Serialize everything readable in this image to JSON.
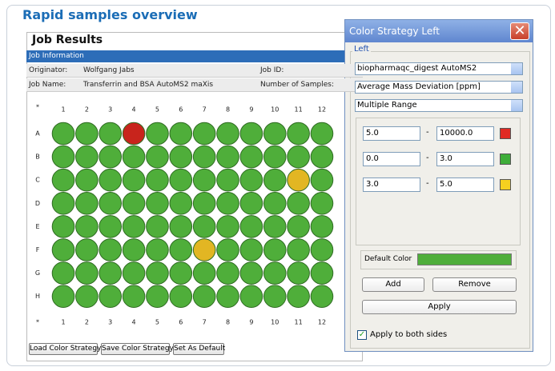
{
  "header": {
    "title": "Rapid samples overview"
  },
  "job_panel": {
    "title": "Job Results",
    "section": "Job Information",
    "rows": [
      [
        "Originator:",
        "Wolfgang Jabs",
        "Job ID:"
      ],
      [
        "Job Name:",
        "Transferrin and BSA AutoMS2 maXis",
        "Number of Samples:"
      ]
    ],
    "plate": {
      "corner": "*",
      "columns": [
        1,
        2,
        3,
        4,
        5,
        6,
        7,
        8,
        9,
        10,
        11,
        12
      ],
      "rows": [
        "A",
        "B",
        "C",
        "D",
        "E",
        "F",
        "G",
        "H"
      ],
      "default_color": "#4fae3a",
      "highlighted": [
        {
          "row": "A",
          "column": 4,
          "color": "#c8241c"
        },
        {
          "row": "C",
          "column": 11,
          "color": "#e2b623"
        },
        {
          "row": "F",
          "column": 7,
          "color": "#e2b623"
        }
      ]
    },
    "buttons": [
      "Load Color Strategy",
      "Save Color Strategy",
      "Set As Default"
    ]
  },
  "dialog": {
    "title": "Color Strategy Left",
    "group": "Left",
    "dropdowns": [
      "biopharmaqc_digest AutoMS2",
      "Average Mass Deviation [ppm]",
      "Multiple Range"
    ],
    "separator": "-",
    "ranges": [
      {
        "from": "5.0",
        "to": "10000.0",
        "color": "#e02a24"
      },
      {
        "from": "0.0",
        "to": "3.0",
        "color": "#3fae3a"
      },
      {
        "from": "3.0",
        "to": "5.0",
        "color": "#f5d020"
      }
    ],
    "default_color_label": "Default Color",
    "default_color": "#4fae3a",
    "buttons": [
      "Add",
      "Remove",
      "Apply"
    ],
    "checkbox": "Apply to both sides"
  }
}
